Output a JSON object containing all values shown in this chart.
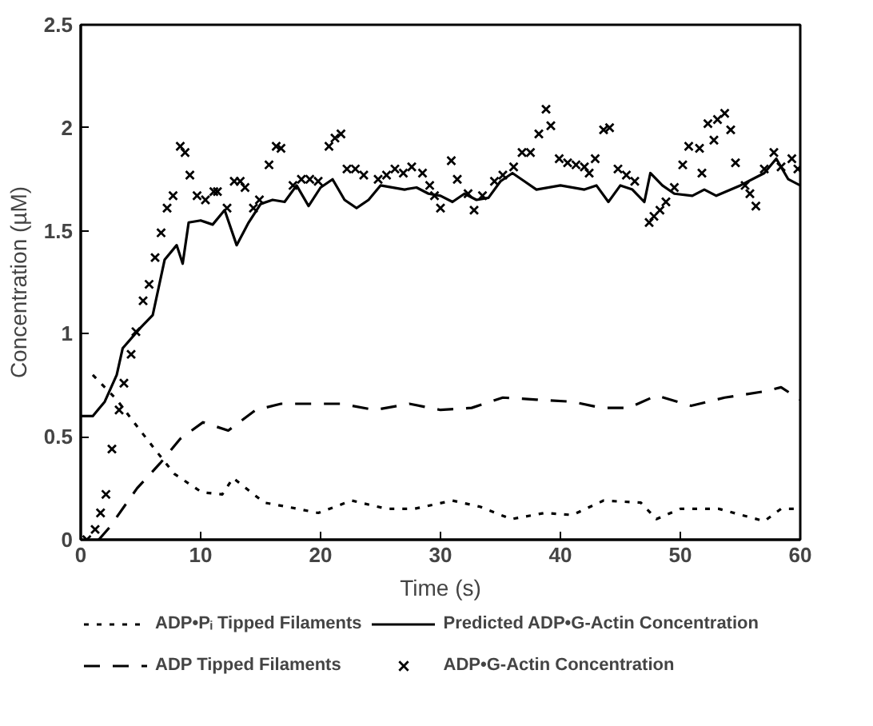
{
  "chart_data": {
    "type": "line",
    "xlabel": "Time (s)",
    "ylabel": "Concentration (µM)",
    "xlim": [
      0,
      60
    ],
    "xticks": [
      0,
      10,
      20,
      30,
      40,
      50,
      60
    ],
    "ylim": [
      0,
      2.5
    ],
    "yticks": [
      0,
      0.5,
      1,
      1.5,
      2,
      2.5
    ],
    "grid": false,
    "legend": "bottom",
    "series": [
      {
        "name": "ADP•Pᵢ Tipped Filaments",
        "line_style": "dotted",
        "color": "#000000",
        "x": [
          1,
          3,
          4.7,
          6.3,
          7.8,
          10.1,
          11.8,
          12.7,
          15.3,
          17.2,
          19.8,
          22.6,
          25.5,
          27.8,
          31,
          33.3,
          35.9,
          38.7,
          41,
          43.6,
          46.7,
          48,
          50,
          53.2,
          57,
          58.4,
          60
        ],
        "values": [
          0.8,
          0.68,
          0.55,
          0.43,
          0.32,
          0.23,
          0.22,
          0.3,
          0.18,
          0.16,
          0.13,
          0.19,
          0.15,
          0.15,
          0.19,
          0.16,
          0.1,
          0.13,
          0.12,
          0.19,
          0.18,
          0.1,
          0.15,
          0.15,
          0.09,
          0.15,
          0.15
        ]
      },
      {
        "name": "Predicted ADP•G-Actin Concentration",
        "line_style": "solid",
        "color": "#000000",
        "x": [
          0,
          1,
          2,
          3,
          3.5,
          5,
          6,
          7,
          8,
          8.5,
          9,
          10,
          11,
          12,
          13,
          14,
          15,
          16,
          17,
          18,
          19,
          20,
          21,
          22,
          23,
          24,
          25,
          27,
          28,
          29,
          30,
          31,
          32,
          33,
          34,
          35,
          36,
          37,
          38,
          40,
          42,
          43,
          44,
          45,
          46,
          47,
          47.5,
          48.5,
          49.5,
          51,
          52,
          53,
          55,
          57,
          58,
          59,
          60
        ],
        "values": [
          0.6,
          0.6,
          0.67,
          0.8,
          0.93,
          1.03,
          1.09,
          1.36,
          1.43,
          1.34,
          1.54,
          1.55,
          1.53,
          1.6,
          1.43,
          1.54,
          1.63,
          1.65,
          1.64,
          1.72,
          1.62,
          1.71,
          1.75,
          1.65,
          1.61,
          1.65,
          1.72,
          1.7,
          1.71,
          1.68,
          1.67,
          1.64,
          1.68,
          1.65,
          1.66,
          1.74,
          1.78,
          1.74,
          1.7,
          1.72,
          1.7,
          1.72,
          1.64,
          1.72,
          1.7,
          1.64,
          1.78,
          1.72,
          1.68,
          1.67,
          1.7,
          1.67,
          1.72,
          1.78,
          1.85,
          1.75,
          1.72
        ]
      },
      {
        "name": "ADP Tipped Filaments",
        "line_style": "dashed",
        "color": "#000000",
        "x": [
          1.5,
          2.4,
          4.7,
          6.6,
          8.3,
          10.2,
          12.3,
          14.6,
          16.7,
          19.1,
          21.7,
          24.5,
          27.4,
          30,
          32.6,
          35.2,
          38,
          41,
          43.4,
          45.7,
          48,
          50.9,
          53.7,
          57,
          58.4,
          60
        ],
        "values": [
          0,
          0.06,
          0.25,
          0.37,
          0.49,
          0.57,
          0.53,
          0.63,
          0.66,
          0.66,
          0.66,
          0.63,
          0.66,
          0.63,
          0.64,
          0.69,
          0.68,
          0.67,
          0.64,
          0.64,
          0.7,
          0.65,
          0.69,
          0.72,
          0.74,
          0.68
        ]
      },
      {
        "name": "ADP•G-Actin Concentration",
        "type": "scatter",
        "marker": "cross",
        "color": "#000000",
        "x": [
          0.5,
          1.2,
          1.65,
          2.1,
          2.6,
          3.2,
          3.6,
          4.2,
          4.6,
          5.2,
          5.7,
          6.2,
          6.7,
          7.2,
          7.7,
          8.3,
          8.7,
          9.1,
          9.7,
          10.4,
          11.1,
          11.4,
          12.2,
          12.8,
          13.3,
          13.7,
          14.4,
          14.9,
          15.7,
          16.3,
          16.7,
          17.7,
          18.4,
          19.1,
          19.8,
          20.7,
          21.2,
          21.7,
          22.2,
          22.9,
          23.6,
          24.8,
          25.5,
          26.2,
          26.9,
          27.6,
          28.5,
          29.1,
          29.5,
          30,
          30.9,
          31.4,
          32.3,
          32.8,
          33.5,
          34.5,
          35.2,
          36.1,
          36.8,
          37.5,
          38.2,
          38.8,
          39.2,
          39.9,
          40.6,
          41.3,
          42,
          42.4,
          42.9,
          43.6,
          44.1,
          44.8,
          45.5,
          46.2,
          47.4,
          47.8,
          48.3,
          48.8,
          49.5,
          50.2,
          50.7,
          51.6,
          51.8,
          52.3,
          52.8,
          53.1,
          53.7,
          54.2,
          54.6,
          55.4,
          55.8,
          56.3,
          57,
          57.8,
          58.4,
          59.3,
          59.8
        ],
        "values": [
          0.0,
          0.05,
          0.13,
          0.22,
          0.44,
          0.63,
          0.76,
          0.9,
          1.01,
          1.16,
          1.24,
          1.37,
          1.49,
          1.61,
          1.67,
          1.91,
          1.88,
          1.77,
          1.67,
          1.65,
          1.69,
          1.69,
          1.61,
          1.74,
          1.74,
          1.71,
          1.61,
          1.65,
          1.82,
          1.91,
          1.9,
          1.72,
          1.75,
          1.75,
          1.74,
          1.91,
          1.95,
          1.97,
          1.8,
          1.8,
          1.77,
          1.75,
          1.77,
          1.8,
          1.78,
          1.81,
          1.78,
          1.72,
          1.67,
          1.61,
          1.84,
          1.75,
          1.68,
          1.6,
          1.67,
          1.74,
          1.77,
          1.81,
          1.88,
          1.88,
          1.97,
          2.09,
          2.01,
          1.85,
          1.83,
          1.82,
          1.81,
          1.78,
          1.85,
          1.99,
          2.0,
          1.8,
          1.77,
          1.74,
          1.54,
          1.57,
          1.6,
          1.64,
          1.71,
          1.82,
          1.91,
          1.9,
          1.78,
          2.02,
          1.94,
          2.04,
          2.07,
          1.99,
          1.83,
          1.72,
          1.68,
          1.62,
          1.8,
          1.88,
          1.81,
          1.85,
          1.8
        ]
      }
    ]
  }
}
